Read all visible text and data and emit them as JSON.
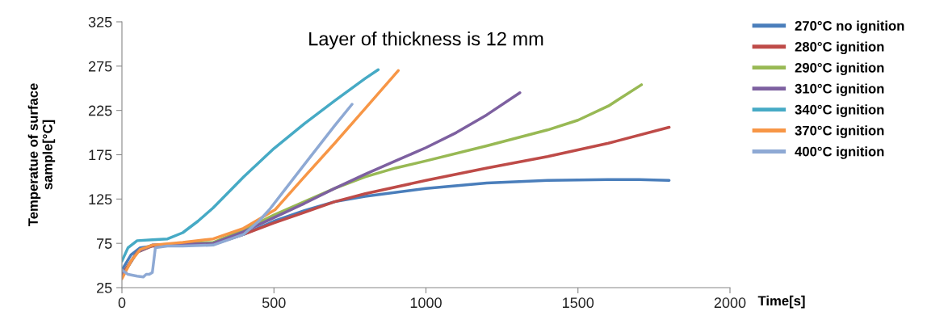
{
  "chart_data": {
    "type": "line",
    "title": "Layer of thickness is 12 mm",
    "xlabel": "Time[s]",
    "ylabel": "Temperatue of surface\nsample[°C]",
    "xlim": [
      0,
      2000
    ],
    "xticks": [
      0,
      500,
      1000,
      1500,
      2000
    ],
    "ylim": [
      25,
      325
    ],
    "yticks": [
      25,
      75,
      125,
      175,
      225,
      275,
      325
    ],
    "grid": false,
    "legend": "right",
    "marker": "none",
    "line_style": "solid",
    "series": [
      {
        "name": "270°C no ignition",
        "color": "#4a7ebb",
        "x": [
          0,
          30,
          60,
          100,
          200,
          300,
          400,
          500,
          600,
          700,
          800,
          1000,
          1200,
          1400,
          1600,
          1700,
          1800
        ],
        "values": [
          45,
          62,
          70,
          72,
          73,
          74,
          85,
          100,
          112,
          122,
          128,
          137,
          143,
          146,
          147,
          147,
          146
        ]
      },
      {
        "name": "280°C ignition",
        "color": "#be4b48",
        "x": [
          0,
          50,
          100,
          200,
          300,
          400,
          500,
          600,
          700,
          800,
          1000,
          1200,
          1400,
          1600,
          1800
        ],
        "values": [
          40,
          65,
          72,
          74,
          74,
          85,
          98,
          110,
          122,
          131,
          146,
          160,
          173,
          188,
          206
        ]
      },
      {
        "name": "290°C ignition",
        "color": "#98b954",
        "x": [
          0,
          50,
          100,
          200,
          300,
          400,
          500,
          600,
          700,
          800,
          900,
          1000,
          1200,
          1400,
          1500,
          1600,
          1709
        ],
        "values": [
          38,
          65,
          73,
          75,
          76,
          90,
          107,
          122,
          137,
          150,
          160,
          168,
          185,
          203,
          214,
          230,
          254
        ]
      },
      {
        "name": "310°C ignition",
        "color": "#7d60a0",
        "x": [
          0,
          50,
          100,
          200,
          300,
          400,
          500,
          600,
          700,
          800,
          900,
          1000,
          1100,
          1200,
          1309
        ],
        "values": [
          38,
          65,
          73,
          74,
          75,
          88,
          104,
          120,
          137,
          153,
          168,
          183,
          200,
          220,
          245
        ]
      },
      {
        "name": "340°C ignition",
        "color": "#46aac5",
        "x": [
          0,
          20,
          50,
          100,
          150,
          200,
          250,
          300,
          400,
          500,
          600,
          700,
          800,
          843
        ],
        "values": [
          55,
          70,
          78,
          79,
          80,
          87,
          100,
          115,
          150,
          182,
          210,
          236,
          261,
          271
        ]
      },
      {
        "name": "370°C ignition",
        "color": "#f79646",
        "x": [
          0,
          30,
          60,
          100,
          200,
          300,
          400,
          450,
          504,
          600,
          700,
          800,
          909
        ],
        "values": [
          35,
          55,
          68,
          73,
          76,
          80,
          92,
          102,
          113,
          150,
          188,
          227,
          270
        ]
      },
      {
        "name": "400°C ignition",
        "color": "#8ea9d4",
        "x": [
          0,
          20,
          50,
          70,
          80,
          90,
          100,
          110,
          150,
          200,
          300,
          400,
          450,
          485,
          600,
          700,
          757
        ],
        "values": [
          45,
          40,
          38,
          37,
          40,
          40,
          42,
          70,
          72,
          72,
          73,
          85,
          100,
          113,
          164,
          208,
          232
        ]
      }
    ]
  }
}
